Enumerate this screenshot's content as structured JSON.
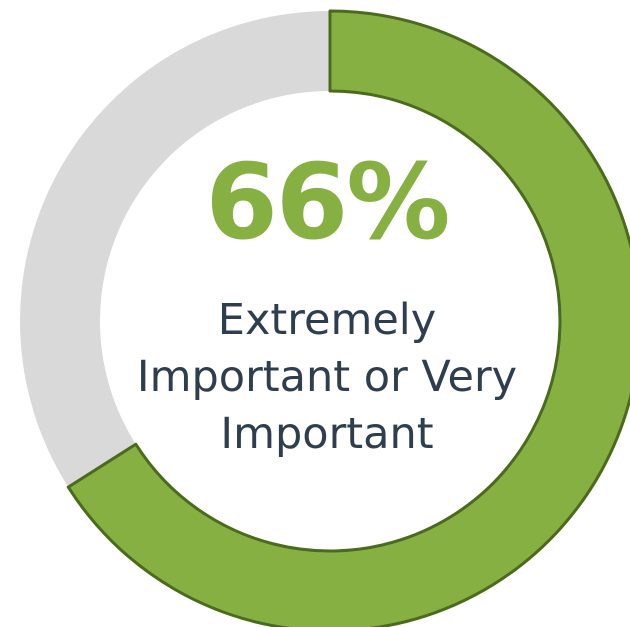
{
  "colors": {
    "highlight": "#86b042",
    "highlight_edge": "#4a6b1c",
    "remainder": "#d9d9d9",
    "text": "#2f3e4e"
  },
  "chart_data": {
    "type": "pie",
    "variant": "donut",
    "value_label": "66%",
    "caption": "Extremely Important or Very Important",
    "slices": [
      {
        "name": "Extremely Important or Very Important",
        "value": 66
      },
      {
        "name": "",
        "value": 34
      }
    ]
  }
}
